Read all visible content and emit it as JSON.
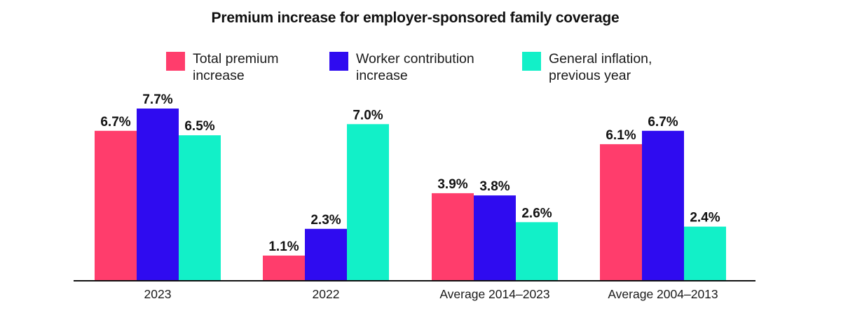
{
  "chart_data": {
    "type": "bar",
    "title": "Premium increase for employer-sponsored family coverage",
    "categories": [
      "2023",
      "2022",
      "Average 2014–2023",
      "Average 2004–2013"
    ],
    "series": [
      {
        "name": "Total premium\nincrease",
        "color": "#ff3d6c",
        "values": [
          6.7,
          1.1,
          3.9,
          6.1
        ]
      },
      {
        "name": "Worker contribution\nincrease",
        "color": "#2f0bf0",
        "values": [
          7.7,
          2.3,
          3.8,
          6.7
        ]
      },
      {
        "name": "General inflation,\nprevious year",
        "color": "#12f0c8",
        "values": [
          6.5,
          7.0,
          2.6,
          2.4
        ]
      }
    ],
    "value_suffix": "%",
    "ylim": [
      0,
      7.7
    ],
    "grid": false,
    "legend_position": "top"
  }
}
